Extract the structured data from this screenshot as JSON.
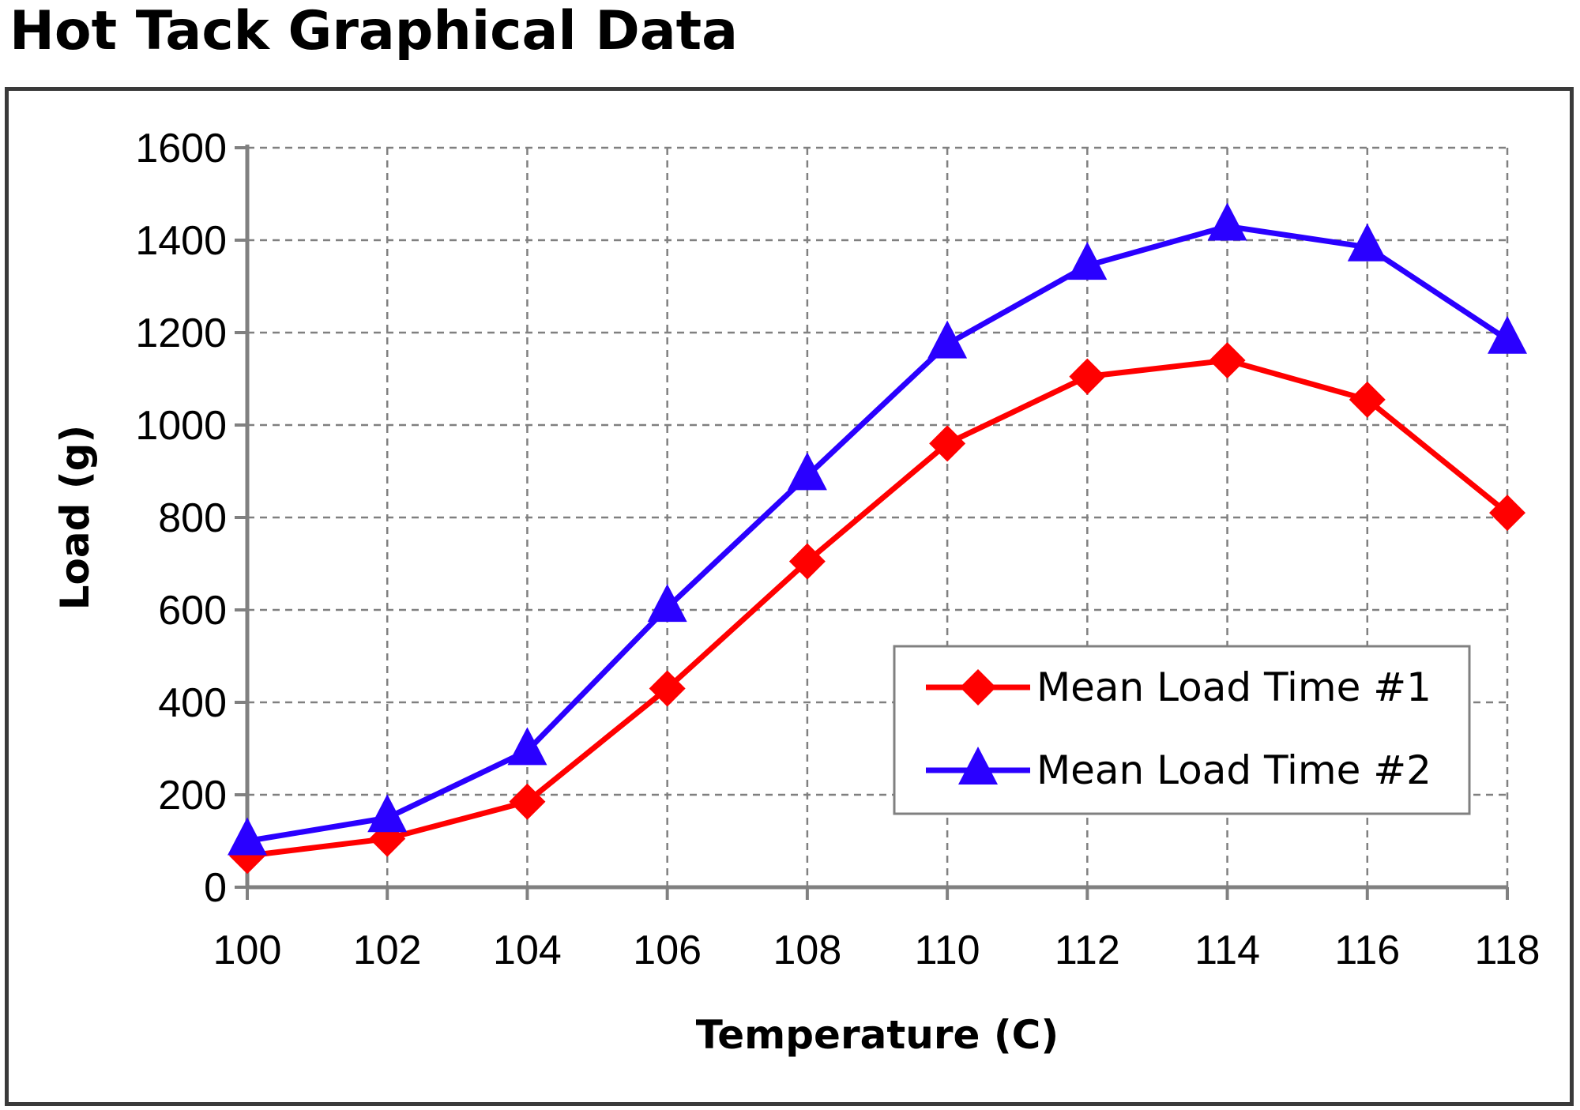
{
  "page_title": "Hot Tack Graphical Data",
  "chart_data": {
    "type": "line",
    "title": "Hot Tack Graphical Data",
    "xlabel": "Temperature (C)",
    "ylabel": "Load (g)",
    "x": [
      100,
      102,
      104,
      106,
      108,
      110,
      112,
      114,
      116,
      118
    ],
    "xlim": [
      100,
      118
    ],
    "ylim": [
      0,
      1600
    ],
    "x_ticks": [
      "100",
      "102",
      "104",
      "106",
      "108",
      "110",
      "112",
      "114",
      "116",
      "118"
    ],
    "y_ticks": [
      "0",
      "200",
      "400",
      "600",
      "800",
      "1000",
      "1200",
      "1400",
      "1600"
    ],
    "grid": true,
    "legend_position": "right",
    "series": [
      {
        "name": "Mean Load Time #1",
        "color": "#ff0000",
        "marker": "diamond",
        "values": [
          68,
          105,
          185,
          430,
          705,
          960,
          1105,
          1140,
          1055,
          810
        ]
      },
      {
        "name": "Mean Load Time #2",
        "color": "#2a00ff",
        "marker": "triangle",
        "values": [
          100,
          150,
          295,
          605,
          890,
          1175,
          1345,
          1430,
          1385,
          1185
        ]
      }
    ]
  }
}
